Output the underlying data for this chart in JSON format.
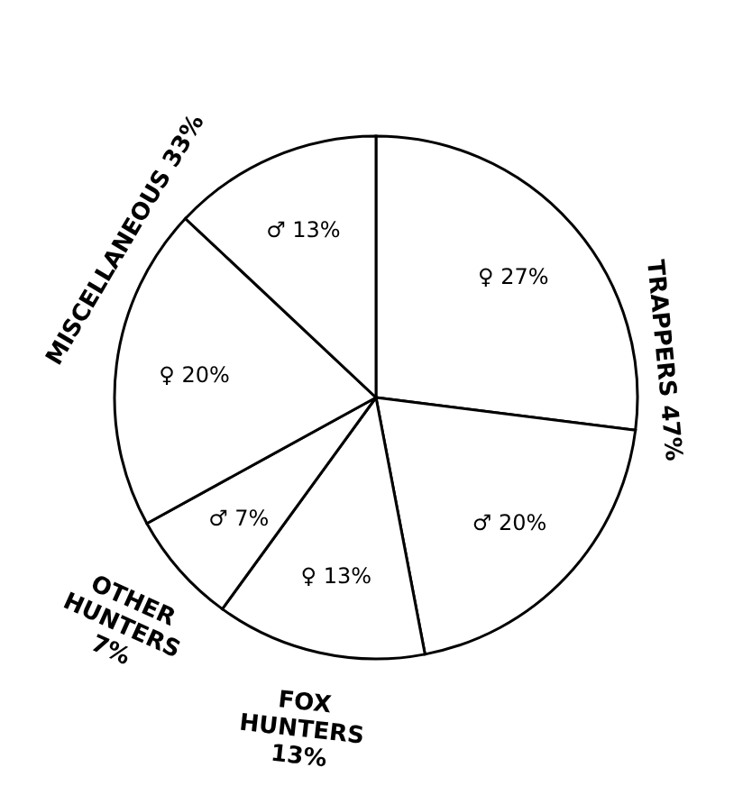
{
  "chart_data": {
    "type": "pie",
    "categories": [
      null,
      null,
      null,
      null,
      null,
      null
    ],
    "values": [
      27,
      20,
      13,
      7,
      20,
      13
    ],
    "colors": [
      "#ffffff",
      "#ffffff",
      "#ffffff",
      "#ffffff",
      "#ffffff",
      "#ffffff"
    ],
    "value_labels": [
      "♀ 27%",
      "♂ 20%",
      "♀ 13%",
      "♂ 7%",
      "♀ 20%",
      "♂ 13%"
    ],
    "annotations": [
      "TRAPPERS 47%",
      "FOX HUNTERS 13%",
      "OTHER HUNTERS 7%",
      "MISCELLANEOUS 33%"
    ],
    "legend": false
  }
}
